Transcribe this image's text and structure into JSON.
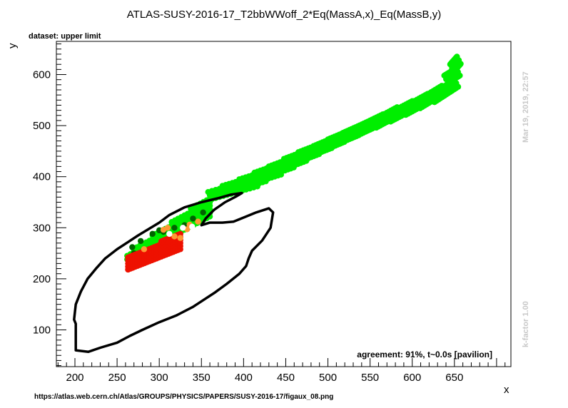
{
  "chart_data": {
    "type": "scatter",
    "title": "ATLAS-SUSY-2016-17_T2bbWWoff_2*Eq(MassA,x)_Eq(MassB,y)",
    "subtitle": "dataset: upper limit",
    "xlabel": "x",
    "ylabel": "y",
    "xlim": [
      178,
      717
    ],
    "ylim": [
      28,
      665
    ],
    "x_ticks": [
      "200",
      "250",
      "300",
      "350",
      "400",
      "450",
      "500",
      "550",
      "600",
      "650"
    ],
    "y_ticks": [
      "100",
      "200",
      "300",
      "400",
      "500",
      "600"
    ],
    "grid": false,
    "agreement": "agreement: 91%, t~0.0s [pavilion]",
    "timestamp": "Mar 19, 2019, 22:57",
    "kfactor": "k-factor 1.00",
    "url": "https://atlas.web.cern.ch/Atlas/GROUPS/PHYSICS/PAPERS/SUSY-2016-17/figaux_08.png",
    "colors": {
      "green": "#00ee00",
      "dark_green": "#006400",
      "red": "#ee1100",
      "orange": "#ff9933",
      "white": "#ffffff",
      "contour": "#000000"
    },
    "bands": [
      {
        "x": [
          358,
          412
        ],
        "y_top": [
          370,
          395
        ]
      },
      {
        "x": [
          375,
          422
        ],
        "y_top": [
          382,
          405
        ]
      },
      {
        "x": [
          395,
          440
        ],
        "y_top": [
          395,
          418
        ]
      },
      {
        "x": [
          413,
          455
        ],
        "y_top": [
          408,
          432
        ]
      },
      {
        "x": [
          430,
          470
        ],
        "y_top": [
          420,
          445
        ]
      },
      {
        "x": [
          448,
          485
        ],
        "y_top": [
          435,
          458
        ]
      },
      {
        "x": [
          465,
          500
        ],
        "y_top": [
          448,
          470
        ]
      },
      {
        "x": [
          483,
          515
        ],
        "y_top": [
          460,
          482
        ]
      },
      {
        "x": [
          500,
          532
        ],
        "y_top": [
          473,
          495
        ]
      },
      {
        "x": [
          518,
          548
        ],
        "y_top": [
          486,
          508
        ]
      },
      {
        "x": [
          535,
          565
        ],
        "y_top": [
          498,
          522
        ]
      },
      {
        "x": [
          553,
          582
        ],
        "y_top": [
          510,
          536
        ]
      },
      {
        "x": [
          570,
          600
        ],
        "y_top": [
          522,
          548
        ]
      },
      {
        "x": [
          588,
          618
        ],
        "y_top": [
          535,
          562
        ]
      },
      {
        "x": [
          605,
          635
        ],
        "y_top": [
          548,
          578
        ]
      },
      {
        "x": [
          622,
          650
        ],
        "y_top": [
          560,
          590
        ]
      },
      {
        "x": [
          638,
          652
        ],
        "y_top": [
          598,
          612
        ]
      },
      {
        "x": [
          645,
          653
        ],
        "y_top": [
          620,
          635
        ]
      }
    ],
    "lower_green": {
      "x": [
        262,
        360
      ],
      "y_bottom": [
        238,
        322
      ],
      "y_top": [
        250,
        365
      ]
    },
    "red_region": {
      "x": [
        263,
        325
      ],
      "y_bottom": [
        218,
        258
      ],
      "y_top": [
        245,
        290
      ]
    },
    "dark_green_points": [
      [
        352,
        330
      ],
      [
        340,
        318
      ],
      [
        330,
        305
      ],
      [
        318,
        300
      ],
      [
        305,
        292
      ],
      [
        300,
        295
      ],
      [
        292,
        288
      ],
      [
        278,
        274
      ],
      [
        268,
        262
      ],
      [
        270,
        250
      ]
    ],
    "orange_points": [
      [
        346,
        312
      ],
      [
        333,
        297
      ],
      [
        318,
        283
      ],
      [
        325,
        280
      ],
      [
        310,
        300
      ],
      [
        282,
        258
      ],
      [
        305,
        296
      ],
      [
        336,
        306
      ]
    ],
    "white_points": [
      [
        312,
        288
      ],
      [
        328,
        300
      ],
      [
        339,
        302
      ]
    ],
    "contour": [
      [
        201,
        112
      ],
      [
        201,
        60
      ],
      [
        216,
        57
      ],
      [
        230,
        65
      ],
      [
        250,
        75
      ],
      [
        265,
        88
      ],
      [
        280,
        100
      ],
      [
        300,
        115
      ],
      [
        320,
        128
      ],
      [
        340,
        145
      ],
      [
        352,
        158
      ],
      [
        365,
        172
      ],
      [
        380,
        190
      ],
      [
        395,
        210
      ],
      [
        403,
        225
      ],
      [
        406,
        240
      ],
      [
        410,
        255
      ],
      [
        422,
        275
      ],
      [
        432,
        300
      ],
      [
        435,
        330
      ],
      [
        430,
        338
      ],
      [
        415,
        330
      ],
      [
        400,
        320
      ],
      [
        388,
        312
      ],
      [
        375,
        310
      ],
      [
        360,
        310
      ],
      [
        350,
        305
      ],
      [
        355,
        318
      ],
      [
        365,
        335
      ],
      [
        378,
        350
      ],
      [
        392,
        362
      ],
      [
        398,
        368
      ],
      [
        385,
        365
      ],
      [
        370,
        358
      ],
      [
        350,
        350
      ],
      [
        330,
        340
      ],
      [
        312,
        325
      ],
      [
        300,
        310
      ],
      [
        290,
        300
      ],
      [
        275,
        285
      ],
      [
        263,
        272
      ],
      [
        250,
        258
      ],
      [
        236,
        240
      ],
      [
        225,
        220
      ],
      [
        215,
        200
      ],
      [
        207,
        175
      ],
      [
        201,
        150
      ],
      [
        199,
        120
      ],
      [
        201,
        112
      ]
    ]
  }
}
